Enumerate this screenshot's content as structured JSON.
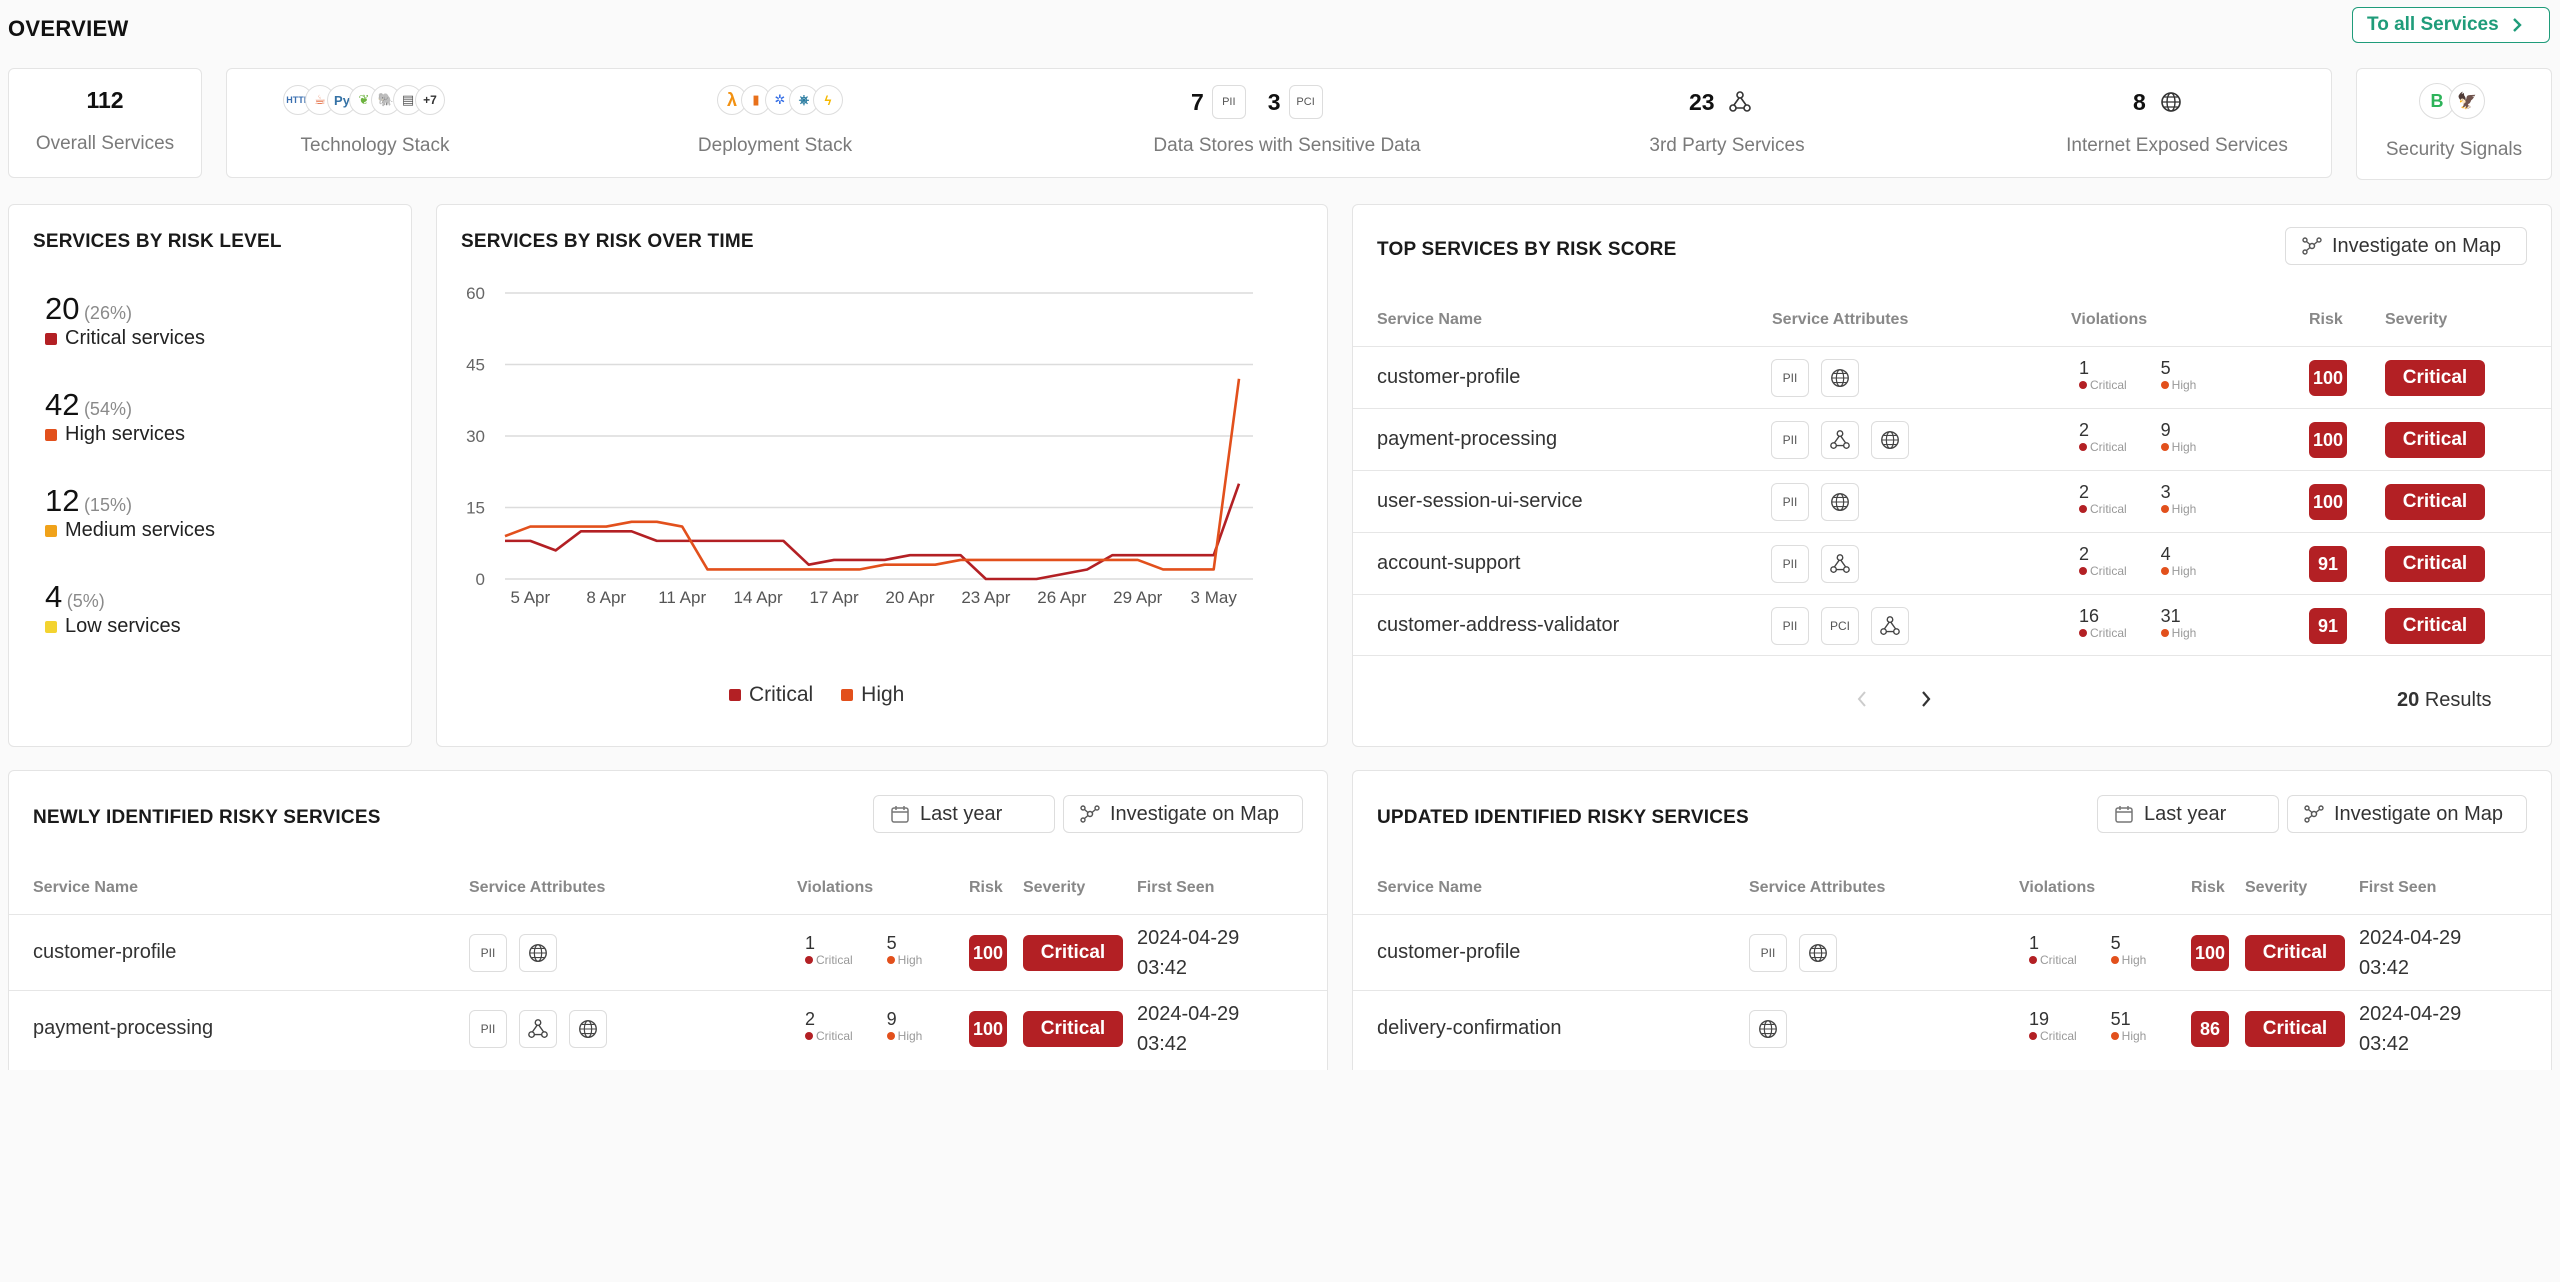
{
  "header": {
    "title": "OVERVIEW",
    "all_services_btn": "To all Services"
  },
  "stats": {
    "overall": {
      "value": "112",
      "label": "Overall Services"
    },
    "tech": {
      "label": "Technology Stack",
      "more": "+7",
      "icons": [
        "http-icon",
        "java-icon",
        "python-icon",
        "spring-icon",
        "postgres-icon",
        "database-icon"
      ]
    },
    "deploy": {
      "label": "Deployment Stack",
      "icons": [
        "lambda-icon",
        "aws-icon",
        "kubernetes-icon",
        "helm-icon",
        "serverless-icon"
      ]
    },
    "datastores": {
      "pii_count": "7",
      "pii_label": "PII",
      "pci_count": "3",
      "pci_label": "PCI",
      "label": "Data Stores with Sensitive Data"
    },
    "third_party": {
      "value": "23",
      "label": "3rd Party Services"
    },
    "internet": {
      "value": "8",
      "label": "Internet Exposed Services"
    },
    "signals": {
      "label": "Security Signals"
    }
  },
  "risk_level": {
    "title": "SERVICES BY RISK LEVEL",
    "items": [
      {
        "value": "20",
        "pct": "(26%)",
        "label": "Critical services",
        "color": "#b32024"
      },
      {
        "value": "42",
        "pct": "(54%)",
        "label": "High services",
        "color": "#e2501c"
      },
      {
        "value": "12",
        "pct": "(15%)",
        "label": "Medium services",
        "color": "#f0a21a"
      },
      {
        "value": "4",
        "pct": "(5%)",
        "label": "Low services",
        "color": "#f3d330"
      }
    ]
  },
  "risk_over_time": {
    "title": "SERVICES BY RISK OVER TIME",
    "legend_critical": "Critical",
    "legend_high": "High"
  },
  "chart_data": {
    "type": "line",
    "title": "SERVICES BY RISK OVER TIME",
    "xlabel": "",
    "ylabel": "",
    "ylim": [
      0,
      60
    ],
    "yticks": [
      0,
      15,
      30,
      45,
      60
    ],
    "xtick_labels": [
      "5 Apr",
      "8 Apr",
      "11 Apr",
      "14 Apr",
      "17 Apr",
      "20 Apr",
      "23 Apr",
      "26 Apr",
      "29 Apr",
      "3 May"
    ],
    "xtick_index": [
      1,
      4,
      7,
      10,
      13,
      16,
      19,
      22,
      25,
      28
    ],
    "series": [
      {
        "name": "Critical",
        "color": "#b32024",
        "values": [
          8,
          8,
          6,
          10,
          10,
          10,
          8,
          8,
          8,
          8,
          8,
          8,
          3,
          4,
          4,
          4,
          5,
          5,
          5,
          0,
          0,
          0,
          1,
          2,
          5,
          5,
          5,
          5,
          5,
          20
        ]
      },
      {
        "name": "High",
        "color": "#e2501c",
        "values": [
          9,
          11,
          11,
          11,
          11,
          12,
          12,
          11,
          2,
          2,
          2,
          2,
          2,
          2,
          2,
          3,
          3,
          3,
          4,
          4,
          4,
          4,
          4,
          4,
          4,
          4,
          2,
          2,
          2,
          42
        ]
      }
    ]
  },
  "top_services": {
    "title": "TOP SERVICES BY RISK SCORE",
    "map_btn": "Investigate on Map",
    "headers": {
      "name": "Service Name",
      "attrs": "Service Attributes",
      "violations": "Violations",
      "risk": "Risk",
      "severity": "Severity"
    },
    "crit_lbl": "Critical",
    "high_lbl": "High",
    "rows": [
      {
        "name": "customer-profile",
        "attrs": [
          "PII",
          "globe"
        ],
        "crit": "1",
        "high": "5",
        "risk": "100",
        "sev": "Critical"
      },
      {
        "name": "payment-processing",
        "attrs": [
          "PII",
          "share",
          "globe"
        ],
        "crit": "2",
        "high": "9",
        "risk": "100",
        "sev": "Critical"
      },
      {
        "name": "user-session-ui-service",
        "attrs": [
          "PII",
          "globe"
        ],
        "crit": "2",
        "high": "3",
        "risk": "100",
        "sev": "Critical"
      },
      {
        "name": "account-support",
        "attrs": [
          "PII",
          "share"
        ],
        "crit": "2",
        "high": "4",
        "risk": "91",
        "sev": "Critical"
      },
      {
        "name": "customer-address-validator",
        "attrs": [
          "PII",
          "PCI",
          "share"
        ],
        "crit": "16",
        "high": "31",
        "risk": "91",
        "sev": "Critical"
      }
    ],
    "results_count": "20",
    "results_label": "Results"
  },
  "newly": {
    "title": "NEWLY IDENTIFIED RISKY SERVICES",
    "date_filter": "Last year",
    "map_btn": "Investigate on Map",
    "headers": {
      "name": "Service Name",
      "attrs": "Service Attributes",
      "violations": "Violations",
      "risk": "Risk",
      "severity": "Severity",
      "first": "First Seen"
    },
    "rows": [
      {
        "name": "customer-profile",
        "attrs": [
          "PII",
          "globe"
        ],
        "crit": "1",
        "high": "5",
        "risk": "100",
        "sev": "Critical",
        "date": "2024-04-29",
        "time": "03:42"
      },
      {
        "name": "payment-processing",
        "attrs": [
          "PII",
          "share",
          "globe"
        ],
        "crit": "2",
        "high": "9",
        "risk": "100",
        "sev": "Critical",
        "date": "2024-04-29",
        "time": "03:42"
      }
    ]
  },
  "updated": {
    "title": "UPDATED IDENTIFIED RISKY SERVICES",
    "date_filter": "Last year",
    "map_btn": "Investigate on Map",
    "headers": {
      "name": "Service Name",
      "attrs": "Service Attributes",
      "violations": "Violations",
      "risk": "Risk",
      "severity": "Severity",
      "first": "First Seen"
    },
    "rows": [
      {
        "name": "customer-profile",
        "attrs": [
          "PII",
          "globe"
        ],
        "crit": "1",
        "high": "5",
        "risk": "100",
        "sev": "Critical",
        "date": "2024-04-29",
        "time": "03:42"
      },
      {
        "name": "delivery-confirmation",
        "attrs": [
          "globe"
        ],
        "crit": "19",
        "high": "51",
        "risk": "86",
        "sev": "Critical",
        "date": "2024-04-29",
        "time": "03:42"
      }
    ]
  }
}
